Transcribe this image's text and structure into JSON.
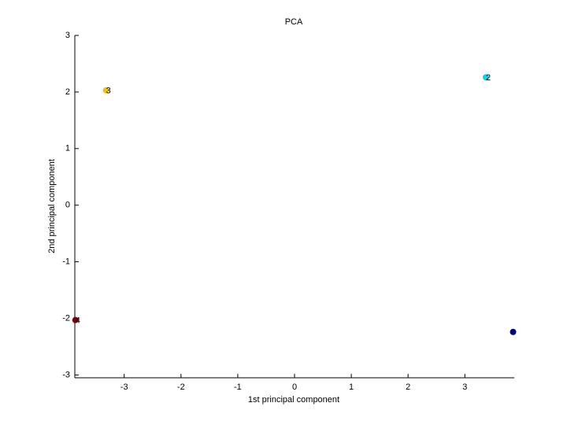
{
  "chart_data": {
    "type": "scatter",
    "title": "PCA",
    "xlabel": "1st principal component",
    "ylabel": "2nd principal component",
    "x": [
      3.85,
      3.37,
      -3.32,
      -3.86
    ],
    "y": [
      -2.24,
      2.26,
      2.03,
      -2.03
    ],
    "colors": [
      "#00007f",
      "#00d8f0",
      "#f5c400",
      "#7f0000"
    ],
    "point_labels": [
      null,
      "2",
      "3",
      "4"
    ],
    "xlim": [
      -3.87,
      3.87
    ],
    "ylim": [
      -3.05,
      3
    ],
    "xticks": [
      -3,
      -2,
      -1,
      0,
      1,
      2,
      3
    ],
    "yticks": [
      -3,
      -2,
      -1,
      0,
      1,
      2,
      3
    ],
    "grid": false
  }
}
